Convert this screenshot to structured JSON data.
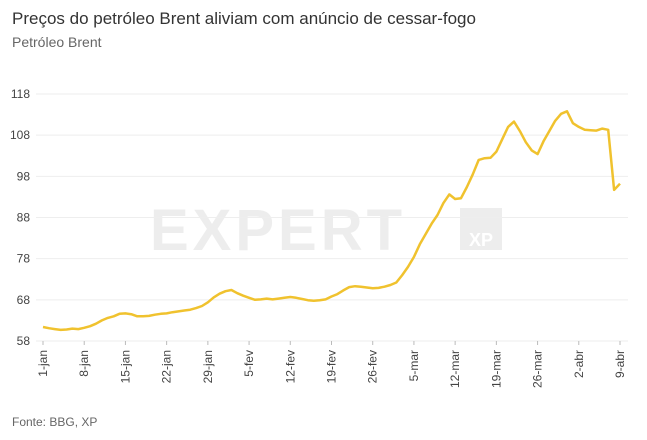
{
  "chart_data": {
    "type": "line",
    "title": "Preços do petróleo Brent aliviam com anúncio de cessar-fogo",
    "subtitle": "Petróleo Brent",
    "source": "Fonte: BBG, XP",
    "watermark": [
      "EXPERT",
      "XP"
    ],
    "categories": [
      "1-jan",
      null,
      null,
      null,
      null,
      null,
      null,
      "8-jan",
      null,
      null,
      null,
      null,
      null,
      null,
      "15-jan",
      null,
      null,
      null,
      null,
      null,
      null,
      "22-jan",
      null,
      null,
      null,
      null,
      null,
      null,
      "29-jan",
      null,
      null,
      null,
      null,
      null,
      null,
      "5-fev",
      null,
      null,
      null,
      null,
      null,
      null,
      "12-fev",
      null,
      null,
      null,
      null,
      null,
      null,
      "19-fev",
      null,
      null,
      null,
      null,
      null,
      null,
      "26-fev",
      null,
      null,
      null,
      null,
      null,
      null,
      "5-mar",
      null,
      null,
      null,
      null,
      null,
      null,
      "12-mar",
      null,
      null,
      null,
      null,
      null,
      null,
      "19-mar",
      null,
      null,
      null,
      null,
      null,
      null,
      "26-mar",
      null,
      null,
      null,
      null,
      null,
      null,
      "2-abr",
      null,
      null,
      null,
      null,
      null,
      null,
      "9-abr"
    ],
    "series": [
      {
        "name": "Petróleo Brent",
        "color": "#f0c22e",
        "values": [
          61.4,
          61.1,
          60.9,
          60.7,
          60.8,
          61.0,
          60.9,
          61.2,
          61.6,
          62.2,
          63.0,
          63.6,
          64.0,
          64.6,
          64.7,
          64.5,
          64.0,
          64.0,
          64.1,
          64.4,
          64.6,
          64.7,
          65.0,
          65.2,
          65.4,
          65.6,
          66.0,
          66.5,
          67.4,
          68.6,
          69.5,
          70.1,
          70.4,
          69.6,
          69.0,
          68.5,
          68.0,
          68.1,
          68.3,
          68.1,
          68.3,
          68.5,
          68.7,
          68.5,
          68.2,
          67.9,
          67.8,
          67.9,
          68.1,
          68.8,
          69.4,
          70.3,
          71.1,
          71.3,
          71.2,
          71.0,
          70.8,
          70.9,
          71.2,
          71.6,
          72.2,
          74.0,
          76.0,
          78.4,
          81.5,
          84.0,
          86.5,
          88.6,
          91.5,
          93.6,
          92.5,
          92.7,
          95.4,
          98.5,
          102.0,
          102.4,
          102.5,
          104.0,
          107.0,
          110.0,
          111.3,
          109.0,
          106.3,
          104.3,
          103.4,
          106.5,
          109.0,
          111.5,
          113.2,
          113.8,
          110.9,
          110.0,
          109.3,
          109.2,
          109.1,
          109.6,
          109.3,
          94.7,
          96.2
        ]
      }
    ],
    "ylim": [
      58,
      118
    ],
    "yticks": [
      58,
      68,
      78,
      88,
      98,
      108,
      118
    ],
    "grid": true
  }
}
